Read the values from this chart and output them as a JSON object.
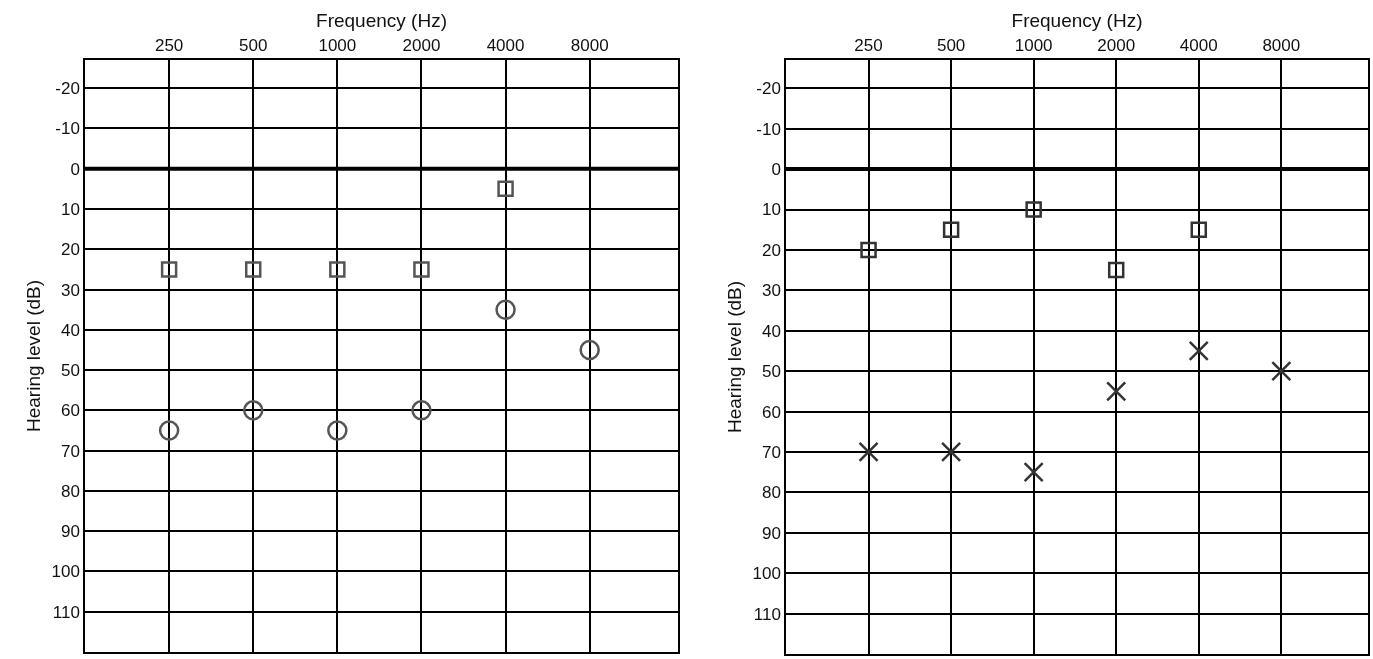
{
  "chart_data": [
    {
      "type": "scatter",
      "xlabel": "Frequency (Hz)",
      "ylabel": "Hearing level (dB)",
      "categories": [
        "250",
        "500",
        "1000",
        "2000",
        "4000",
        "8000"
      ],
      "ylim": [
        120,
        -27
      ],
      "yticks": [
        -20,
        -10,
        0,
        10,
        20,
        30,
        40,
        50,
        60,
        70,
        80,
        90,
        100,
        110
      ],
      "grid": true,
      "ref_lines": [
        {
          "axis": "y",
          "value": 0,
          "color": "#000000"
        }
      ],
      "series": [
        {
          "color": "#555555",
          "marker": "square",
          "values": [
            25,
            25,
            25,
            25,
            5,
            null
          ]
        },
        {
          "color": "#555555",
          "marker": "circle",
          "values": [
            65,
            60,
            65,
            60,
            35,
            45
          ]
        }
      ]
    },
    {
      "type": "scatter",
      "xlabel": "Frequency (Hz)",
      "ylabel": "Hearing level (dB)",
      "categories": [
        "250",
        "500",
        "1000",
        "2000",
        "4000",
        "8000"
      ],
      "ylim": [
        120,
        -27
      ],
      "yticks": [
        -20,
        -10,
        0,
        10,
        20,
        30,
        40,
        50,
        60,
        70,
        80,
        90,
        100,
        110
      ],
      "grid": true,
      "ref_lines": [
        {
          "axis": "y",
          "value": 0,
          "color": "#000000"
        }
      ],
      "series": [
        {
          "color": "#333333",
          "marker": "square",
          "values": [
            20,
            15,
            10,
            25,
            15,
            null
          ]
        },
        {
          "color": "#333333",
          "marker": "cross",
          "values": [
            70,
            70,
            75,
            55,
            45,
            50
          ]
        }
      ]
    }
  ]
}
